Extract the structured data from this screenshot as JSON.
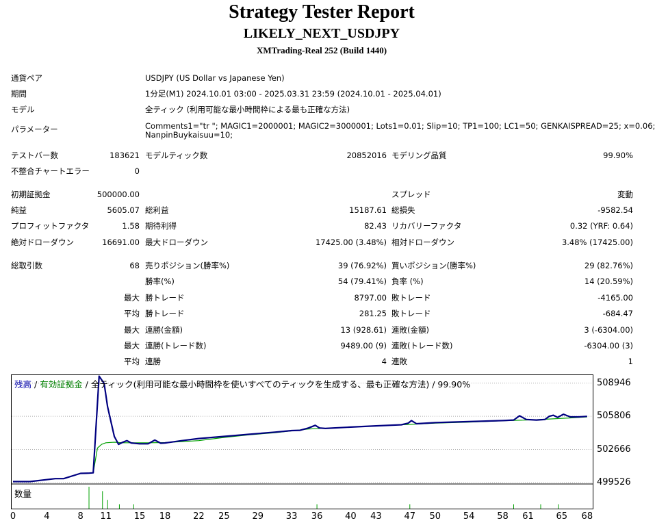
{
  "header": {
    "title": "Strategy Tester Report",
    "subtitle": "LIKELY_NEXT_USDJPY",
    "build": "XMTrading-Real 252 (Build 1440)"
  },
  "info": {
    "pair_label": "通貨ペア",
    "pair_value": "USDJPY (US Dollar vs Japanese Yen)",
    "period_label": "期間",
    "period_value": "1分足(M1) 2024.10.01 03:00 - 2025.03.31 23:59 (2024.10.01 - 2025.04.01)",
    "model_label": "モデル",
    "model_value": "全ティック (利用可能な最小時間枠による最も正確な方法)",
    "params_label": "パラメーター",
    "params_line1": "Comments1=\"tr \"; MAGIC1=2000001; MAGIC2=3000001; Lots1=0.01; Slip=10; TP1=100; LC1=50; GENKAISPREAD=25; x=0.06;",
    "params_line2": "NanpinBuykaisuu=10;"
  },
  "stats": {
    "bars_label": "テストバー数",
    "bars_value": "183621",
    "ticks_label": "モデルティック数",
    "ticks_value": "20852016",
    "quality_label": "モデリング品質",
    "quality_value": "99.90%",
    "mismatch_label": "不整合チャートエラー",
    "mismatch_value": "0",
    "deposit_label": "初期証拠金",
    "deposit_value": "500000.00",
    "spread_label": "スプレッド",
    "spread_value": "変動",
    "net_label": "純益",
    "net_value": "5605.07",
    "gross_profit_label": "総利益",
    "gross_profit_value": "15187.61",
    "gross_loss_label": "総損失",
    "gross_loss_value": "-9582.54",
    "pf_label": "プロフィットファクタ",
    "pf_value": "1.58",
    "expected_label": "期待利得",
    "expected_value": "82.43",
    "recovery_label": "リカバリーファクタ",
    "recovery_value": "0.32 (YRF: 0.64)",
    "abs_dd_label": "絶対ドローダウン",
    "abs_dd_value": "16691.00",
    "max_dd_label": "最大ドローダウン",
    "max_dd_value": "17425.00 (3.48%)",
    "rel_dd_label": "相対ドローダウン",
    "rel_dd_value": "3.48% (17425.00)",
    "trades_label": "総取引数",
    "trades_value": "68",
    "short_label": "売りポジション(勝率%)",
    "short_value": "39 (76.92%)",
    "long_label": "買いポジション(勝率%)",
    "long_value": "29 (82.76%)",
    "winrate_label": "勝率(%)",
    "winrate_value": "54 (79.41%)",
    "lossrate_label": "負率 (%)",
    "lossrate_value": "14 (20.59%)",
    "max_label": "最大",
    "avg_label": "平均",
    "win_trade_label": "勝トレード",
    "loss_trade_label": "敗トレード",
    "max_win_value": "8797.00",
    "max_loss_value": "-4165.00",
    "avg_win_value": "281.25",
    "avg_loss_value": "-684.47",
    "cons_win_amt_label": "連勝(金額)",
    "cons_win_amt_value": "13 (928.61)",
    "cons_loss_amt_label": "連敗(金額)",
    "cons_loss_amt_value": "3 (-6304.00)",
    "cons_win_tr_label": "連勝(トレード数)",
    "cons_win_tr_value": "9489.00 (9)",
    "cons_loss_tr_label": "連敗(トレード数)",
    "cons_loss_tr_value": "-6304.00 (3)",
    "avg_cons_win_label": "連勝",
    "avg_cons_win_value": "4",
    "avg_cons_loss_label": "連敗",
    "avg_cons_loss_value": "1"
  },
  "chart_legend": {
    "balance": "残高",
    "sep1": " / ",
    "equity": "有効証拠金",
    "sep2": " / ",
    "desc": "全ティック(利用可能な最小時間枠を使いすべてのティックを生成する、最も正確な方法) / 99.90%"
  },
  "volume_label": "数量",
  "chart_data": {
    "type": "line",
    "y_ticks": [
      "508946",
      "505806",
      "502666",
      "499526"
    ],
    "x_ticks": [
      "0",
      "4",
      "8",
      "11",
      "15",
      "18",
      "22",
      "25",
      "29",
      "33",
      "36",
      "40",
      "43",
      "47",
      "50",
      "54",
      "58",
      "61",
      "65",
      "68"
    ],
    "xlim": [
      0,
      68.5
    ],
    "ylim": [
      499526,
      509700
    ],
    "colors": {
      "balance": "#000080",
      "equity": "#00a000",
      "volume": "#00a000"
    },
    "series": [
      {
        "name": "残高",
        "x": [
          0,
          2,
          5,
          6,
          8,
          9,
          9.5,
          10.2,
          10.8,
          11.2,
          12,
          12.5,
          13,
          13.5,
          14,
          15,
          16,
          16.8,
          17.5,
          18,
          20,
          22,
          25,
          28,
          31,
          33,
          34,
          35,
          35.8,
          36.3,
          37,
          40,
          43,
          46,
          46.8,
          47.2,
          47.8,
          50,
          54,
          58,
          59.3,
          60,
          60.8,
          62,
          63,
          63.5,
          64,
          64.5,
          65.2,
          66,
          67,
          68
        ],
        "values": [
          499620,
          499620,
          499900,
          499900,
          500400,
          500420,
          500450,
          509600,
          508900,
          506700,
          503900,
          503150,
          503350,
          503500,
          503280,
          503200,
          503200,
          503550,
          503250,
          503280,
          503500,
          503700,
          503900,
          504100,
          504300,
          504450,
          504480,
          504700,
          504950,
          504700,
          504650,
          504780,
          504900,
          505000,
          505150,
          505400,
          505100,
          505200,
          505300,
          505400,
          505450,
          505850,
          505500,
          505450,
          505500,
          505800,
          505900,
          505700,
          506000,
          505750,
          505750,
          505800
        ]
      },
      {
        "name": "有効証拠金",
        "x": [
          0,
          2,
          5,
          6,
          8,
          9,
          9.5,
          10,
          10.5,
          11,
          12,
          13,
          16,
          18,
          22,
          25,
          28,
          31,
          35,
          40,
          46,
          50,
          54,
          58,
          62,
          66,
          68
        ],
        "values": [
          499620,
          499620,
          499900,
          499900,
          500400,
          500420,
          500450,
          502800,
          503150,
          503300,
          503350,
          503300,
          503300,
          503320,
          503500,
          503800,
          504050,
          504250,
          504600,
          504780,
          505000,
          505150,
          505250,
          505380,
          505480,
          505650,
          505750
        ]
      }
    ],
    "volume_x": [
      9,
      10.6,
      11.2,
      12.6,
      14.3,
      36,
      47,
      59.3,
      62.5,
      64.6
    ],
    "volume_values": [
      5,
      4,
      2,
      1,
      1,
      1,
      1,
      1,
      1,
      1
    ]
  }
}
